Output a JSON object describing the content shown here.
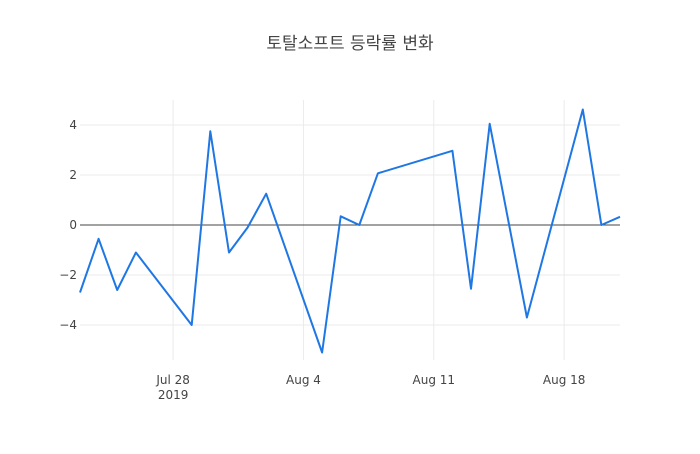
{
  "chart_data": {
    "type": "line",
    "title": "토탈소프트 등락률 변화",
    "xlabel": "",
    "ylabel": "",
    "x_tick_labels": [
      {
        "date": "2019-07-28",
        "label": "Jul 28",
        "sublabel": "2019"
      },
      {
        "date": "2019-08-04",
        "label": "Aug 4",
        "sublabel": ""
      },
      {
        "date": "2019-08-11",
        "label": "Aug 11",
        "sublabel": ""
      },
      {
        "date": "2019-08-18",
        "label": "Aug 18",
        "sublabel": ""
      }
    ],
    "y_ticks": [
      -4,
      -2,
      0,
      2,
      4
    ],
    "y_tick_labels": [
      "−4",
      "−2",
      "0",
      "2",
      "4"
    ],
    "xlim": [
      "2019-07-23",
      "2019-08-21"
    ],
    "ylim": [
      -5.4,
      5.0
    ],
    "grid": true,
    "zero_line": true,
    "line_color": "#1f77e4",
    "grid_color": "#ebebeb",
    "zero_line_color": "#444444",
    "title_color": "#444444",
    "tick_color": "#444444",
    "series": [
      {
        "x": [
          "2019-07-23",
          "2019-07-24",
          "2019-07-25",
          "2019-07-26",
          "2019-07-29",
          "2019-07-30",
          "2019-07-31",
          "2019-08-01",
          "2019-08-02",
          "2019-08-05",
          "2019-08-06",
          "2019-08-07",
          "2019-08-08",
          "2019-08-12",
          "2019-08-13",
          "2019-08-14",
          "2019-08-16",
          "2019-08-19",
          "2019-08-20",
          "2019-08-21"
        ],
        "y": [
          -2.7,
          -0.55,
          -2.6,
          -1.1,
          -4.0,
          3.75,
          -1.1,
          -0.1,
          1.25,
          -5.1,
          0.35,
          0.0,
          2.07,
          2.97,
          -2.55,
          4.05,
          -3.7,
          4.62,
          0.0,
          0.33
        ]
      }
    ]
  }
}
